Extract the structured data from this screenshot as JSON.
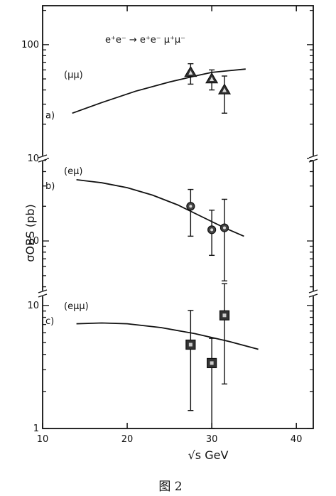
{
  "figure": {
    "reaction": "e⁺e⁻ → e⁺e⁻ μ⁺μ⁻",
    "y_axis_label": "σOBS (pb)",
    "x_axis_label": "√s  GeV",
    "caption": "图 2"
  },
  "chart_data": {
    "type": "scatter",
    "xlim": [
      10,
      42
    ],
    "x_ticks": [
      10,
      20,
      30,
      40
    ],
    "panels": [
      {
        "tag": "a)",
        "channel": "(μμ)",
        "yscale": "log",
        "ylim": [
          10,
          220
        ],
        "y_ticks": [
          10,
          100
        ],
        "marker": "triangle",
        "points": [
          {
            "x": 27.5,
            "y": 57,
            "ylo": 45,
            "yhi": 68
          },
          {
            "x": 30.0,
            "y": 50,
            "ylo": 40,
            "yhi": 60
          },
          {
            "x": 31.5,
            "y": 40,
            "ylo": 25,
            "yhi": 53
          }
        ],
        "curve": [
          [
            13.5,
            25
          ],
          [
            17,
            31
          ],
          [
            21,
            39
          ],
          [
            25,
            47
          ],
          [
            28,
            53
          ],
          [
            30,
            57
          ],
          [
            32,
            59
          ],
          [
            34,
            61
          ]
        ]
      },
      {
        "tag": "b)",
        "channel": "(eμ)",
        "yscale": "log",
        "ylim": [
          3.5,
          52
        ],
        "y_ticks": [
          10
        ],
        "marker": "circle",
        "points": [
          {
            "x": 27.5,
            "y": 20,
            "ylo": 11,
            "yhi": 28
          },
          {
            "x": 30.0,
            "y": 12.5,
            "ylo": 7.5,
            "yhi": 18.5
          },
          {
            "x": 31.5,
            "y": 13,
            "ylo": 4.5,
            "yhi": 23
          }
        ],
        "curve": [
          [
            14,
            34
          ],
          [
            17,
            32
          ],
          [
            20,
            29
          ],
          [
            23,
            25
          ],
          [
            26,
            20.5
          ],
          [
            29,
            16
          ],
          [
            31.5,
            13
          ],
          [
            33.8,
            11
          ]
        ]
      },
      {
        "tag": "c)",
        "channel": "(eμμ)",
        "yscale": "log",
        "ylim": [
          1,
          12.5
        ],
        "y_ticks": [
          1,
          10
        ],
        "marker": "square",
        "points": [
          {
            "x": 27.5,
            "y": 4.8,
            "ylo": 1.4,
            "yhi": 9.1
          },
          {
            "x": 30.0,
            "y": 3.4,
            "ylo": 1.0,
            "yhi": 5.4
          },
          {
            "x": 31.5,
            "y": 8.3,
            "ylo": 2.3,
            "yhi": 15.0
          }
        ],
        "curve": [
          [
            14,
            7.1
          ],
          [
            17,
            7.2
          ],
          [
            20,
            7.1
          ],
          [
            24,
            6.6
          ],
          [
            28,
            5.9
          ],
          [
            32,
            5.1
          ],
          [
            35.5,
            4.4
          ]
        ]
      }
    ]
  }
}
